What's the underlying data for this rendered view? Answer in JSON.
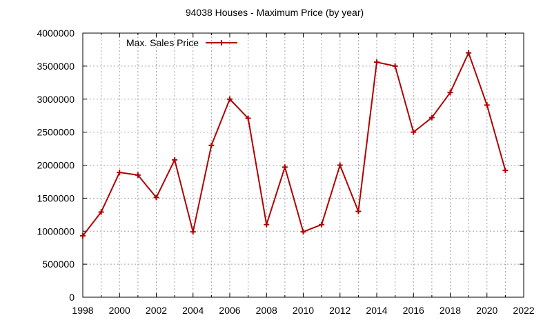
{
  "chart_data": {
    "type": "line",
    "title": "94038 Houses - Maximum Price (by year)",
    "xlabel": "",
    "ylabel": "",
    "xlim": [
      1998,
      2022
    ],
    "ylim": [
      0,
      4000000
    ],
    "x_ticks": [
      "1998",
      "2000",
      "2002",
      "2004",
      "2006",
      "2008",
      "2010",
      "2012",
      "2014",
      "2016",
      "2018",
      "2020",
      "2022"
    ],
    "y_ticks": [
      "0",
      "500000",
      "1000000",
      "1500000",
      "2000000",
      "2500000",
      "3000000",
      "3500000",
      "4000000"
    ],
    "grid": true,
    "legend_position": "top-left",
    "series": [
      {
        "name": "Max. Sales Price",
        "color": "#b00000",
        "marker": "plus",
        "x": [
          1998,
          1999,
          2000,
          2001,
          2002,
          2003,
          2004,
          2005,
          2006,
          2007,
          2008,
          2009,
          2010,
          2011,
          2012,
          2013,
          2014,
          2015,
          2016,
          2017,
          2018,
          2019,
          2020,
          2021
        ],
        "y": [
          930000,
          1290000,
          1890000,
          1850000,
          1510000,
          2080000,
          990000,
          2300000,
          3000000,
          2710000,
          1100000,
          1970000,
          990000,
          1100000,
          2000000,
          1300000,
          3560000,
          3500000,
          2500000,
          2720000,
          3100000,
          3700000,
          2910000,
          1920000
        ]
      }
    ]
  }
}
